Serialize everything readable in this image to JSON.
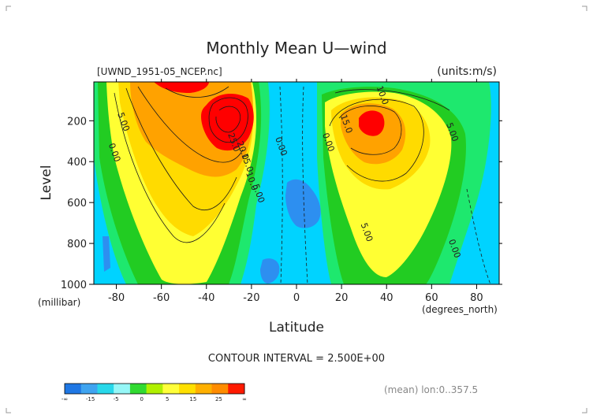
{
  "plot": {
    "title": "Monthly Mean U—wind",
    "dataset_label": "[UWND_1951-05_NCEP.nc]",
    "units_label": "(units:m/s)",
    "contour_interval_text": "CONTOUR INTERVAL = 2.500E+00",
    "footnote": "(mean) lon:0..357.5"
  },
  "chart_data": {
    "type": "contour",
    "title": "Monthly Mean U—wind",
    "xlabel": "Latitude",
    "xunit": "(degrees_north)",
    "ylabel": "Level",
    "yunit": "(millibar)",
    "xlim": [
      -90,
      90
    ],
    "ylim": [
      1000,
      10
    ],
    "x_ticks": [
      "-80",
      "-60",
      "-40",
      "-20",
      "0",
      "20",
      "40",
      "60",
      "80"
    ],
    "x_tick_values": [
      -80,
      -60,
      -40,
      -20,
      0,
      20,
      40,
      60,
      80
    ],
    "y_ticks": [
      "200",
      "400",
      "600",
      "800",
      "1000"
    ],
    "y_tick_values": [
      200,
      400,
      600,
      800,
      1000
    ],
    "contour_interval": 2.5,
    "contour_labels": [
      {
        "text": "5.00",
        "lat": -78,
        "lev": 210
      },
      {
        "text": "0.00",
        "lat": -82,
        "lev": 360
      },
      {
        "text": "25.0",
        "lat": -29,
        "lev": 310
      },
      {
        "text": "20.0",
        "lat": -25,
        "lev": 350
      },
      {
        "text": "15.0",
        "lat": -23,
        "lev": 410
      },
      {
        "text": "10.0",
        "lat": -21,
        "lev": 500
      },
      {
        "text": "5.00",
        "lat": -18,
        "lev": 560
      },
      {
        "text": "0.00",
        "lat": -8,
        "lev": 330
      },
      {
        "text": "0.00",
        "lat": 13,
        "lev": 310
      },
      {
        "text": "10.0",
        "lat": 37,
        "lev": 80
      },
      {
        "text": "15.0",
        "lat": 21,
        "lev": 220
      },
      {
        "text": "5.00",
        "lat": 68,
        "lev": 260
      },
      {
        "text": "5.00",
        "lat": 30,
        "lev": 750
      },
      {
        "text": "0.00",
        "lat": 69,
        "lev": 830
      }
    ],
    "colorbar": {
      "labels": [
        "-∞",
        "-15",
        "-5",
        "0",
        "5",
        "15",
        "25",
        "∞"
      ],
      "colors": [
        "#1f77e4",
        "#3fa4f0",
        "#28d8ea",
        "#96f7f7",
        "#31da31",
        "#b0f000",
        "#ffff3a",
        "#ffe000",
        "#ffb000",
        "#ff8c00",
        "#ff1a00"
      ]
    },
    "level_colors": {
      "neg_strong": "#2d8ff0",
      "neg": "#00d3ff",
      "zero_to_2_5": "#1ee86e",
      "2_5_to_5": "#22cc22",
      "5_to_10": "#ffff33",
      "10_to_15": "#ffdb00",
      "15_to_25": "#ffa200",
      "gt_25": "#ff0000"
    }
  }
}
